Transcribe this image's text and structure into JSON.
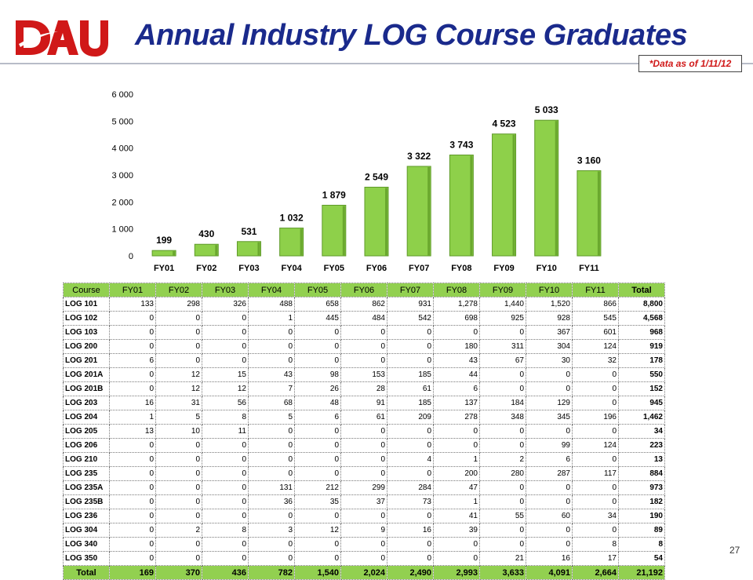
{
  "slide": {
    "title": "Annual Industry LOG Course Graduates",
    "as_of": "*Data as of 1/11/12",
    "page_number": "27",
    "logo": {
      "text": "DAU",
      "colors": {
        "primary": "#d01818",
        "secondary": "#ffffff"
      }
    }
  },
  "colors": {
    "bar_fill": "#8ed04a",
    "bar_stroke": "#5f9a2a",
    "bar_shade": "#6aa82e",
    "table_header": "#92d050",
    "title": "#1a2a8c"
  },
  "chart_data": {
    "type": "bar",
    "categories": [
      "FY01",
      "FY02",
      "FY03",
      "FY04",
      "FY05",
      "FY06",
      "FY07",
      "FY08",
      "FY09",
      "FY10",
      "FY11"
    ],
    "values": [
      199,
      430,
      531,
      1032,
      1879,
      2549,
      3322,
      3743,
      4523,
      5033,
      3160
    ],
    "data_labels": [
      "199",
      "430",
      "531",
      "1 032",
      "1 879",
      "2 549",
      "3 322",
      "3 743",
      "4 523",
      "5 033",
      "3 160"
    ],
    "ylim": [
      0,
      6000
    ],
    "y_ticks": [
      0,
      1000,
      2000,
      3000,
      4000,
      5000,
      6000
    ],
    "y_tick_labels": [
      "0",
      "1 000",
      "2 000",
      "3 000",
      "4 000",
      "5 000",
      "6 000"
    ],
    "grid": false,
    "legend": "none"
  },
  "table": {
    "columns": [
      "Course",
      "FY01",
      "FY02",
      "FY03",
      "FY04",
      "FY05",
      "FY06",
      "FY07",
      "FY08",
      "FY09",
      "FY10",
      "FY11",
      "Total"
    ],
    "rows": [
      [
        "LOG 101",
        "133",
        "298",
        "326",
        "488",
        "658",
        "862",
        "931",
        "1,278",
        "1,440",
        "1,520",
        "866",
        "8,800"
      ],
      [
        "LOG 102",
        "0",
        "0",
        "0",
        "1",
        "445",
        "484",
        "542",
        "698",
        "925",
        "928",
        "545",
        "4,568"
      ],
      [
        "LOG 103",
        "0",
        "0",
        "0",
        "0",
        "0",
        "0",
        "0",
        "0",
        "0",
        "367",
        "601",
        "968"
      ],
      [
        "LOG 200",
        "0",
        "0",
        "0",
        "0",
        "0",
        "0",
        "0",
        "180",
        "311",
        "304",
        "124",
        "919"
      ],
      [
        "LOG 201",
        "6",
        "0",
        "0",
        "0",
        "0",
        "0",
        "0",
        "43",
        "67",
        "30",
        "32",
        "178"
      ],
      [
        "LOG 201A",
        "0",
        "12",
        "15",
        "43",
        "98",
        "153",
        "185",
        "44",
        "0",
        "0",
        "0",
        "550"
      ],
      [
        "LOG 201B",
        "0",
        "12",
        "12",
        "7",
        "26",
        "28",
        "61",
        "6",
        "0",
        "0",
        "0",
        "152"
      ],
      [
        "LOG 203",
        "16",
        "31",
        "56",
        "68",
        "48",
        "91",
        "185",
        "137",
        "184",
        "129",
        "0",
        "945"
      ],
      [
        "LOG 204",
        "1",
        "5",
        "8",
        "5",
        "6",
        "61",
        "209",
        "278",
        "348",
        "345",
        "196",
        "1,462"
      ],
      [
        "LOG 205",
        "13",
        "10",
        "11",
        "0",
        "0",
        "0",
        "0",
        "0",
        "0",
        "0",
        "0",
        "34"
      ],
      [
        "LOG 206",
        "0",
        "0",
        "0",
        "0",
        "0",
        "0",
        "0",
        "0",
        "0",
        "99",
        "124",
        "223"
      ],
      [
        "LOG 210",
        "0",
        "0",
        "0",
        "0",
        "0",
        "0",
        "4",
        "1",
        "2",
        "6",
        "0",
        "13"
      ],
      [
        "LOG 235",
        "0",
        "0",
        "0",
        "0",
        "0",
        "0",
        "0",
        "200",
        "280",
        "287",
        "117",
        "884"
      ],
      [
        "LOG 235A",
        "0",
        "0",
        "0",
        "131",
        "212",
        "299",
        "284",
        "47",
        "0",
        "0",
        "0",
        "973"
      ],
      [
        "LOG 235B",
        "0",
        "0",
        "0",
        "36",
        "35",
        "37",
        "73",
        "1",
        "0",
        "0",
        "0",
        "182"
      ],
      [
        "LOG 236",
        "0",
        "0",
        "0",
        "0",
        "0",
        "0",
        "0",
        "41",
        "55",
        "60",
        "34",
        "190"
      ],
      [
        "LOG 304",
        "0",
        "2",
        "8",
        "3",
        "12",
        "9",
        "16",
        "39",
        "0",
        "0",
        "0",
        "89"
      ],
      [
        "LOG 340",
        "0",
        "0",
        "0",
        "0",
        "0",
        "0",
        "0",
        "0",
        "0",
        "0",
        "8",
        "8"
      ],
      [
        "LOG 350",
        "0",
        "0",
        "0",
        "0",
        "0",
        "0",
        "0",
        "0",
        "21",
        "16",
        "17",
        "54"
      ]
    ],
    "total_row": [
      "Total",
      "169",
      "370",
      "436",
      "782",
      "1,540",
      "2,024",
      "2,490",
      "2,993",
      "3,633",
      "4,091",
      "2,664",
      "21,192"
    ]
  }
}
